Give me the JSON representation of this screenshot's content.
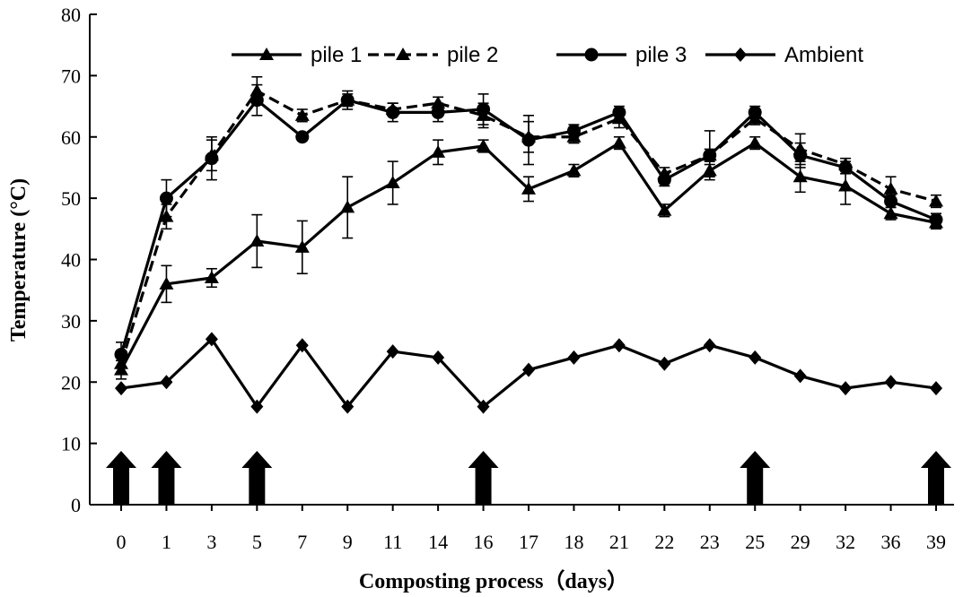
{
  "chart_data": {
    "type": "line",
    "title": "",
    "xlabel": "Composting process（days）",
    "ylabel": "Temperature (°C)",
    "categories": [
      "0",
      "1",
      "3",
      "5",
      "7",
      "9",
      "11",
      "14",
      "16",
      "17",
      "18",
      "21",
      "22",
      "23",
      "25",
      "29",
      "32",
      "36",
      "39"
    ],
    "ylim": [
      0,
      80
    ],
    "yticks": [
      0,
      10,
      20,
      30,
      40,
      50,
      60,
      70,
      80
    ],
    "grid": false,
    "legend_position": "top",
    "series": [
      {
        "name": "pile 1",
        "marker": "triangle",
        "dash": "solid",
        "values": [
          22,
          36,
          37,
          43,
          42,
          48.5,
          52.5,
          57.5,
          58.5,
          51.5,
          54.5,
          59,
          48,
          54.5,
          59,
          53.5,
          52,
          47.5,
          46
        ],
        "errors": [
          1.5,
          3,
          1.5,
          4.3,
          4.3,
          5,
          3.5,
          2,
          1,
          2,
          1,
          1,
          1,
          1,
          1,
          2.5,
          3,
          1,
          1
        ]
      },
      {
        "name": "pile 2",
        "marker": "triangle",
        "dash": "dashed",
        "values": [
          23,
          47,
          57,
          67.5,
          63.5,
          66,
          64.5,
          65.5,
          63.5,
          60,
          60,
          63,
          54,
          57,
          63,
          58,
          55.5,
          51.5,
          49.5
        ],
        "errors": [
          1.5,
          2,
          2.5,
          2.3,
          1,
          1,
          1,
          1,
          2,
          2.5,
          1,
          1.5,
          1,
          1,
          1,
          2.5,
          1,
          2,
          1
        ]
      },
      {
        "name": "pile 3",
        "marker": "circle",
        "dash": "solid",
        "values": [
          24.5,
          50,
          56.5,
          66,
          60,
          66,
          64,
          64,
          64.5,
          59.5,
          61,
          64,
          53,
          57,
          64,
          57,
          55,
          49.5,
          46.5
        ],
        "errors": [
          2,
          3,
          3.5,
          2.5,
          0.5,
          1.5,
          1.5,
          1.5,
          2.5,
          4,
          1,
          1,
          1,
          4,
          1,
          2,
          1,
          1,
          1
        ]
      },
      {
        "name": "Ambient",
        "marker": "diamond",
        "dash": "solid",
        "values": [
          19,
          20,
          27,
          16,
          26,
          16,
          25,
          24,
          16,
          22,
          24,
          26,
          23,
          26,
          24,
          21,
          19,
          20,
          19
        ]
      }
    ],
    "arrows_at": [
      "0",
      "1",
      "5",
      "16",
      "25",
      "39"
    ]
  }
}
